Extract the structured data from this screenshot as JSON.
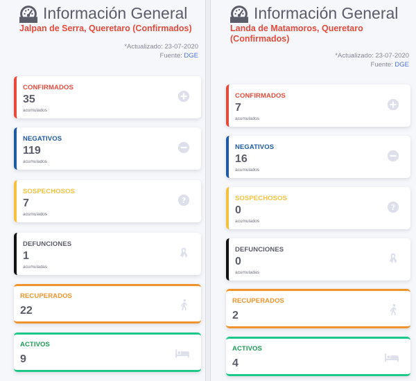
{
  "left": {
    "title": "Información General",
    "subtitle": "Jalpan de Serra, Queretaro (Confirmados)",
    "updated_label": "*Actualizado: 23-07-2020",
    "source_label": "Fuente:",
    "source_link": "DGE",
    "cards": [
      {
        "label": "CONFIRMADOS",
        "value": "35",
        "note": "acumulados",
        "color": "#e74a3b",
        "icon": "plus-circle-icon"
      },
      {
        "label": "NEGATIVOS",
        "value": "119",
        "note": "acumulados",
        "color": "#1f5aa6",
        "icon": "minus-circle-icon"
      },
      {
        "label": "SOSPECHOSOS",
        "value": "7",
        "note": "acumulados",
        "color": "#f6c23e",
        "icon": "question-circle-icon"
      },
      {
        "label": "DEFUNCIONES",
        "value": "1",
        "note": "acumuladas",
        "color": "#111111",
        "icon": "ribbon-icon"
      },
      {
        "label": "RECUPERADOS",
        "value": "22",
        "note": "",
        "color": "#f0932b",
        "icon": "walking-person-icon"
      },
      {
        "label": "ACTIVOS",
        "value": "9",
        "note": "",
        "color": "#1cc88a",
        "icon": "bed-icon"
      }
    ]
  },
  "right": {
    "title": "Información General",
    "subtitle": "Landa de Matamoros, Queretaro (Confirmados)",
    "updated_label": "*Actualizado: 23-07-2020",
    "source_label": "Fuente:",
    "source_link": "DGE",
    "cards": [
      {
        "label": "CONFIRMADOS",
        "value": "7",
        "note": "acumulados",
        "color": "#e74a3b",
        "icon": "plus-circle-icon"
      },
      {
        "label": "NEGATIVOS",
        "value": "16",
        "note": "acumulados",
        "color": "#1f5aa6",
        "icon": "minus-circle-icon"
      },
      {
        "label": "SOSPECHOSOS",
        "value": "0",
        "note": "acumulados",
        "color": "#f6c23e",
        "icon": "question-circle-icon"
      },
      {
        "label": "DEFUNCIONES",
        "value": "0",
        "note": "acumuladas",
        "color": "#111111",
        "icon": "ribbon-icon"
      },
      {
        "label": "RECUPERADOS",
        "value": "2",
        "note": "",
        "color": "#f0932b",
        "icon": "walking-person-icon"
      },
      {
        "label": "ACTIVOS",
        "value": "4",
        "note": "",
        "color": "#1cc88a",
        "icon": "bed-icon"
      }
    ]
  }
}
